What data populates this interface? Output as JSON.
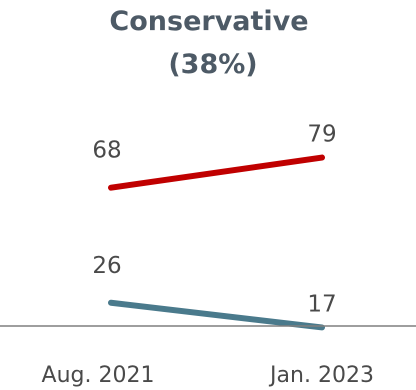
{
  "chart_data": {
    "type": "line",
    "title": "Conservative",
    "subtitle": "(38%)",
    "categories": [
      "Aug. 2021",
      "Jan. 2023"
    ],
    "series": [
      {
        "values": [
          68,
          79
        ],
        "color": "#c00000"
      },
      {
        "values": [
          26,
          17
        ],
        "color": "#4a7a8c"
      }
    ],
    "ylim": [
      0,
      100
    ],
    "grid": false,
    "legend": "none",
    "axis_color": "#7f7f7f"
  }
}
